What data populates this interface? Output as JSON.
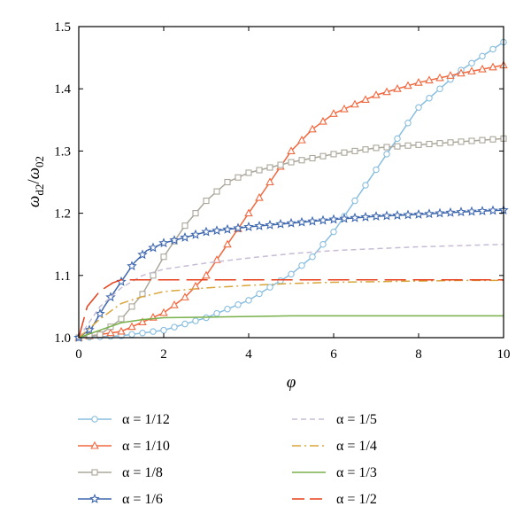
{
  "chart_data": {
    "type": "line",
    "title": "",
    "xlabel": "φ",
    "ylabel_main": "ω",
    "ylabel_sub1": "d2",
    "ylabel_slash": "/",
    "ylabel_sub2": "02",
    "xlim": [
      0,
      10
    ],
    "ylim": [
      1.0,
      1.5
    ],
    "xticks": [
      0,
      2,
      4,
      6,
      8,
      10
    ],
    "yticks": [
      1.0,
      1.1,
      1.2,
      1.3,
      1.4,
      1.5
    ],
    "xtick_labels": [
      "0",
      "2",
      "4",
      "6",
      "8",
      "10"
    ],
    "ytick_labels": [
      "1.0",
      "1.1",
      "1.2",
      "1.3",
      "1.4",
      "1.5"
    ],
    "grid": false,
    "legend_position": "bottom",
    "series": [
      {
        "name": "α = 1/12",
        "color": "#89bedf",
        "marker": "circle",
        "dash": "solid",
        "x": [
          0,
          1,
          2,
          3,
          4,
          5,
          5.5,
          6,
          6.5,
          7,
          7.5,
          8,
          9,
          10
        ],
        "y": [
          1.0,
          1.003,
          1.012,
          1.032,
          1.06,
          1.102,
          1.13,
          1.17,
          1.22,
          1.27,
          1.32,
          1.37,
          1.43,
          1.475
        ]
      },
      {
        "name": "α = 1/10",
        "color": "#f0683f",
        "marker": "triangle",
        "dash": "solid",
        "x": [
          0,
          1,
          2,
          2.5,
          3,
          3.5,
          4,
          4.5,
          5,
          5.5,
          6,
          7,
          8,
          9,
          10
        ],
        "y": [
          1.0,
          1.01,
          1.04,
          1.065,
          1.1,
          1.15,
          1.2,
          1.25,
          1.3,
          1.335,
          1.36,
          1.39,
          1.41,
          1.425,
          1.438
        ]
      },
      {
        "name": "α = 1/8",
        "color": "#aba79b",
        "marker": "square",
        "dash": "solid",
        "x": [
          0,
          0.5,
          1,
          1.5,
          2,
          2.5,
          3,
          3.5,
          4,
          5,
          6,
          7,
          8,
          9,
          10
        ],
        "y": [
          1.0,
          1.005,
          1.03,
          1.07,
          1.13,
          1.18,
          1.22,
          1.25,
          1.265,
          1.282,
          1.295,
          1.305,
          1.31,
          1.315,
          1.32
        ]
      },
      {
        "name": "α = 1/6",
        "color": "#3f68ad",
        "marker": "star",
        "dash": "solid",
        "x": [
          0,
          0.3,
          0.6,
          1,
          1.3,
          1.6,
          2,
          3,
          4,
          5,
          6,
          7,
          8,
          9,
          10
        ],
        "y": [
          1.0,
          1.015,
          1.05,
          1.09,
          1.12,
          1.14,
          1.152,
          1.17,
          1.178,
          1.184,
          1.19,
          1.195,
          1.198,
          1.202,
          1.205
        ]
      },
      {
        "name": "α = 1/5",
        "color": "#c7bcd6",
        "marker": "none",
        "dash": "6,4",
        "x": [
          0,
          0.5,
          1,
          1.5,
          2,
          3,
          4,
          5,
          6,
          7,
          8,
          9,
          10
        ],
        "y": [
          1.0,
          1.05,
          1.08,
          1.1,
          1.11,
          1.12,
          1.128,
          1.135,
          1.14,
          1.143,
          1.146,
          1.148,
          1.15
        ]
      },
      {
        "name": "α = 1/4",
        "color": "#d9a53a",
        "marker": "none",
        "dash": "10,4,2,4",
        "x": [
          0,
          0.5,
          1,
          1.5,
          2,
          3,
          4,
          5,
          6,
          7,
          8,
          9,
          10
        ],
        "y": [
          1.0,
          1.03,
          1.055,
          1.066,
          1.074,
          1.08,
          1.084,
          1.087,
          1.089,
          1.09,
          1.091,
          1.092,
          1.092
        ]
      },
      {
        "name": "α = 1/3",
        "color": "#78b04a",
        "marker": "none",
        "dash": "solid",
        "x": [
          0,
          0.5,
          1,
          1.5,
          2,
          3,
          4,
          5,
          6,
          7,
          8,
          9,
          10
        ],
        "y": [
          1.0,
          1.012,
          1.024,
          1.029,
          1.032,
          1.033,
          1.034,
          1.035,
          1.035,
          1.035,
          1.035,
          1.035,
          1.035
        ]
      },
      {
        "name": "α = 1/2",
        "color": "#e8401c",
        "marker": "none",
        "dash": "24,8",
        "x": [
          0,
          0.2,
          0.5,
          0.8,
          1,
          2,
          4,
          6,
          8,
          10
        ],
        "y": [
          1.0,
          1.05,
          1.075,
          1.088,
          1.093,
          1.093,
          1.093,
          1.093,
          1.093,
          1.093
        ]
      }
    ]
  }
}
